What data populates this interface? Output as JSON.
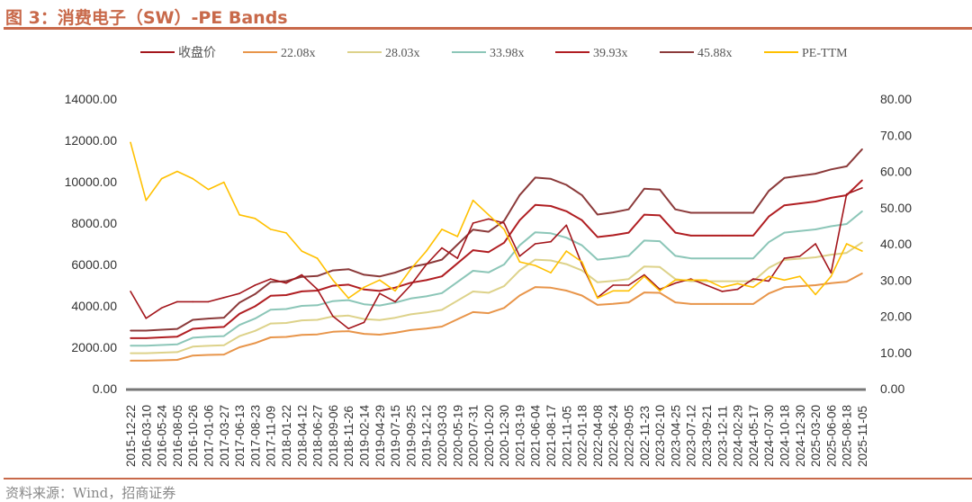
{
  "title": "图 3：消费电子（SW）-PE Bands",
  "source": "资料来源：Wind，招商证券",
  "chart_data": {
    "type": "line",
    "title": "图 3：消费电子（SW）-PE Bands",
    "x": [
      "2015-12-22",
      "2016-03-10",
      "2016-05-24",
      "2016-08-05",
      "2016-10-26",
      "2017-01-06",
      "2017-03-27",
      "2017-06-13",
      "2017-08-23",
      "2017-11-09",
      "2018-01-22",
      "2018-04-12",
      "2018-06-27",
      "2018-09-06",
      "2018-11-26",
      "2019-02-14",
      "2019-04-29",
      "2019-07-15",
      "2019-09-25",
      "2019-12-12",
      "2020-03-03",
      "2020-05-19",
      "2020-07-31",
      "2020-10-20",
      "2020-12-30",
      "2021-03-19",
      "2021-06-04",
      "2021-08-17",
      "2021-11-05",
      "2022-01-18",
      "2022-04-08",
      "2022-06-24",
      "2022-09-05",
      "2022-11-23",
      "2023-02-10",
      "2023-04-25",
      "2023-07-12",
      "2023-09-21",
      "2023-12-11",
      "2024-02-29",
      "2024-05-17",
      "2024-07-30",
      "2024-10-18",
      "2024-12-30",
      "2025-03-20",
      "2025-06-06",
      "2025-08-18",
      "2025-11-05"
    ],
    "y_left": {
      "min": 0,
      "max": 14000,
      "step": 2000,
      "ticks": [
        "0.00",
        "2000.00",
        "4000.00",
        "6000.00",
        "8000.00",
        "10000.00",
        "12000.00",
        "14000.00"
      ]
    },
    "y_right": {
      "min": 0,
      "max": 80,
      "step": 10,
      "ticks": [
        "0.00",
        "10.00",
        "20.00",
        "30.00",
        "40.00",
        "50.00",
        "60.00",
        "70.00",
        "80.00"
      ]
    },
    "legend_position": "top",
    "grid": false,
    "series": [
      {
        "name": "收盘价",
        "axis": "left",
        "color": "#a3161c",
        "values": [
          4700,
          3400,
          3900,
          4200,
          4200,
          4200,
          4400,
          4600,
          5000,
          5300,
          5100,
          5500,
          4800,
          3500,
          2900,
          3200,
          4600,
          4200,
          5000,
          6000,
          6800,
          6300,
          8000,
          8200,
          8000,
          6400,
          7000,
          7100,
          7900,
          6000,
          4400,
          5000,
          5000,
          5500,
          4800,
          5100,
          5300,
          5000,
          4700,
          4800,
          5300,
          5200,
          6300,
          6400,
          7000,
          5600,
          9400,
          9700
        ]
      },
      {
        "name": "22.08x",
        "axis": "left",
        "color": "#e8954a",
        "values": [
          1350,
          1350,
          1370,
          1390,
          1600,
          1630,
          1650,
          2000,
          2200,
          2480,
          2500,
          2600,
          2620,
          2750,
          2780,
          2650,
          2610,
          2700,
          2830,
          2900,
          3000,
          3350,
          3700,
          3650,
          3900,
          4500,
          4910,
          4880,
          4740,
          4500,
          4050,
          4100,
          4170,
          4650,
          4630,
          4170,
          4090,
          4090,
          4090,
          4090,
          4090,
          4600,
          4900,
          4950,
          5000,
          5100,
          5170,
          5570
        ]
      },
      {
        "name": "28.03x",
        "axis": "left",
        "color": "#ddd28a",
        "values": [
          1714,
          1714,
          1739,
          1765,
          2031,
          2069,
          2095,
          2539,
          2793,
          3148,
          3174,
          3301,
          3326,
          3491,
          3529,
          3364,
          3313,
          3428,
          3593,
          3682,
          3808,
          4253,
          4697,
          4634,
          4951,
          5713,
          6233,
          6195,
          6017,
          5713,
          5141,
          5205,
          5294,
          5903,
          5878,
          5294,
          5192,
          5192,
          5192,
          5192,
          5192,
          5840,
          6221,
          6284,
          6347,
          6474,
          6563,
          7071
        ]
      },
      {
        "name": "33.98x",
        "axis": "left",
        "color": "#8cc6b8",
        "values": [
          2078,
          2078,
          2108,
          2139,
          2462,
          2508,
          2539,
          3078,
          3386,
          3817,
          3847,
          4001,
          4032,
          4232,
          4278,
          4078,
          4017,
          4155,
          4355,
          4463,
          4617,
          5156,
          5694,
          5617,
          6002,
          6925,
          7556,
          7510,
          7295,
          6925,
          6233,
          6310,
          6417,
          7156,
          7125,
          6417,
          6294,
          6294,
          6294,
          6294,
          6294,
          7079,
          7541,
          7618,
          7695,
          7849,
          7957,
          8572
        ]
      },
      {
        "name": "39.93x",
        "axis": "left",
        "color": "#b01e22",
        "values": [
          2441,
          2441,
          2478,
          2514,
          2893,
          2948,
          2984,
          3617,
          3979,
          4485,
          4521,
          4702,
          4738,
          4973,
          5027,
          4792,
          4720,
          4883,
          5118,
          5244,
          5425,
          6058,
          6691,
          6601,
          7053,
          8138,
          8879,
          8825,
          8572,
          8138,
          7324,
          7415,
          7541,
          8409,
          8373,
          7541,
          7397,
          7397,
          7397,
          7397,
          7397,
          8319,
          8861,
          8952,
          9042,
          9223,
          9350,
          10073
        ]
      },
      {
        "name": "45.88x",
        "axis": "left",
        "color": "#8b3a3a",
        "values": [
          2805,
          2805,
          2847,
          2888,
          3325,
          3387,
          3429,
          4156,
          4571,
          5153,
          5195,
          5403,
          5444,
          5714,
          5776,
          5506,
          5423,
          5610,
          5880,
          6026,
          6234,
          6961,
          7688,
          7584,
          8104,
          9351,
          10202,
          10140,
          9849,
          9351,
          8415,
          8519,
          8665,
          9662,
          9621,
          8665,
          8499,
          8499,
          8499,
          8499,
          8499,
          9558,
          10182,
          10286,
          10389,
          10597,
          10743,
          11574
        ]
      },
      {
        "name": "PE-TTM",
        "axis": "right",
        "color": "#ffc000",
        "values": [
          68,
          52,
          58,
          60,
          58,
          55,
          57,
          48,
          47,
          44,
          43,
          38,
          36,
          30,
          25,
          28,
          30,
          27,
          33,
          38,
          44,
          42,
          52,
          48,
          44,
          35,
          34,
          32,
          38,
          35,
          25,
          27,
          27,
          31,
          27,
          30,
          30,
          30,
          28,
          29,
          28,
          31,
          30,
          31,
          26,
          31,
          40,
          38
        ]
      }
    ]
  }
}
